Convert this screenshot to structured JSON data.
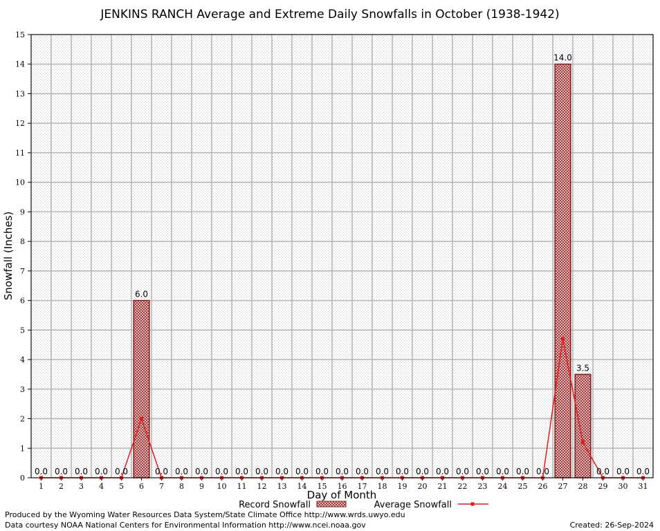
{
  "chart_data": {
    "type": "bar",
    "title": "JENKINS RANCH Average and Extreme Daily Snowfalls in October (1938-1942)",
    "xlabel": "Day of Month",
    "ylabel": "Snowfall (Inches)",
    "ylim": [
      0,
      15
    ],
    "yticks": [
      0,
      1,
      2,
      3,
      4,
      5,
      6,
      7,
      8,
      9,
      10,
      11,
      12,
      13,
      14,
      15
    ],
    "grid": true,
    "legend_position": "bottom-center",
    "categories": [
      1,
      2,
      3,
      4,
      5,
      6,
      7,
      8,
      9,
      10,
      11,
      12,
      13,
      14,
      15,
      16,
      17,
      18,
      19,
      20,
      21,
      22,
      23,
      24,
      25,
      26,
      27,
      28,
      29,
      30,
      31
    ],
    "series": [
      {
        "name": "Record Snowfall",
        "kind": "bar",
        "color": "#8b1a1a",
        "values": [
          0,
          0,
          0,
          0,
          0,
          6.0,
          0,
          0,
          0,
          0,
          0,
          0,
          0,
          0,
          0,
          0,
          0,
          0,
          0,
          0,
          0,
          0,
          0,
          0,
          0,
          0,
          14.0,
          3.5,
          0,
          0,
          0
        ],
        "labels": {
          "6": "6.0",
          "27": "14.0",
          "28": "3.5"
        }
      },
      {
        "name": "Average Snowfall",
        "kind": "line",
        "color": "#e41a1c",
        "values": [
          0,
          0,
          0,
          0,
          0,
          2.0,
          0,
          0,
          0,
          0,
          0,
          0,
          0,
          0,
          0,
          0,
          0,
          0,
          0,
          0,
          0,
          0,
          0,
          0,
          0,
          0,
          4.7,
          1.2,
          0,
          0,
          0
        ],
        "labels": [
          "0.0",
          "0.0",
          "0.0",
          "0.0",
          "0.0",
          "",
          "0.0",
          "0.0",
          "0.0",
          "0.0",
          "0.0",
          "0.0",
          "0.0",
          "0.0",
          "0.0",
          "0.0",
          "0.0",
          "0.0",
          "0.0",
          "0.0",
          "0.0",
          "0.0",
          "0.0",
          "0.0",
          "0.0",
          "0.0",
          "",
          "",
          "0.0",
          "0.0",
          "0.0"
        ]
      }
    ]
  },
  "footer": {
    "produced_by": "Produced by the Wyoming Water Resources Data System/State Climate Office http://www.wrds.uwyo.edu",
    "data_courtesy": "Data courtesy NOAA National Centers for Environmental Information http://www.ncei.noaa.gov",
    "created": "Created:  26-Sep-2024"
  }
}
